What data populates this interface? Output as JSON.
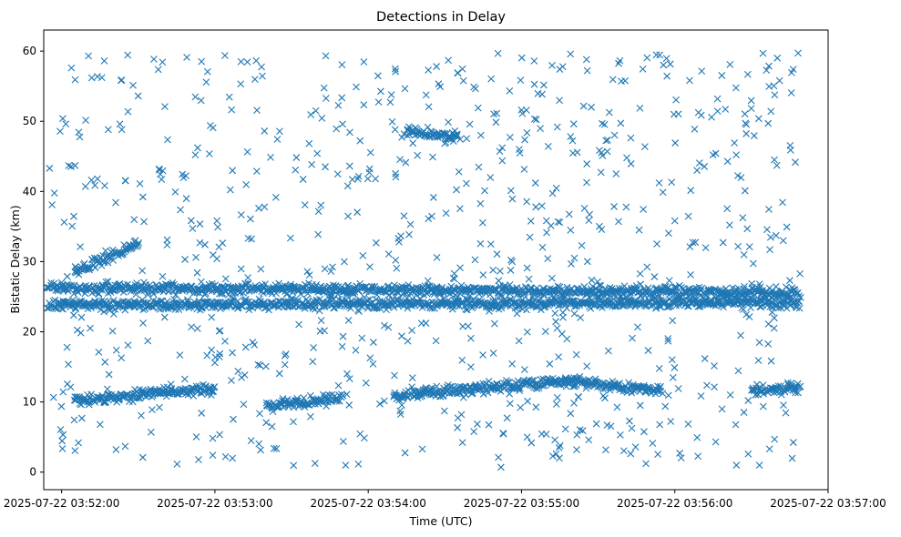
{
  "chart_data": {
    "type": "scatter",
    "title": "Detections in Delay",
    "xlabel": "Time (UTC)",
    "ylabel": "Bistatic Delay (km)",
    "marker": "x",
    "marker_color": "#1f77b4",
    "xlim": [
      "2025-07-22 03:51:53",
      "2025-07-22 03:57:00"
    ],
    "ylim": [
      -2.5,
      63
    ],
    "x_ticks": [
      "2025-07-22 03:52:00",
      "2025-07-22 03:53:00",
      "2025-07-22 03:54:00",
      "2025-07-22 03:55:00",
      "2025-07-22 03:56:00",
      "2025-07-22 03:57:00"
    ],
    "y_ticks": [
      0,
      10,
      20,
      30,
      40,
      50,
      60
    ],
    "grid": false,
    "tracks": [
      {
        "start": "2025-07-22 03:51:54",
        "end": "2025-07-22 03:56:49",
        "y_start": 26.3,
        "y_end": 25.6
      },
      {
        "start": "2025-07-22 03:51:54",
        "end": "2025-07-22 03:56:49",
        "y_start": 23.8,
        "y_end": 24.2
      },
      {
        "start": "2025-07-22 03:52:05",
        "end": "2025-07-22 03:52:30",
        "y_start": 28.5,
        "y_end": 32.5
      },
      {
        "start": "2025-07-22 03:52:05",
        "end": "2025-07-22 03:53:00",
        "y_start": 10.2,
        "y_end": 11.9
      },
      {
        "start": "2025-07-22 03:53:20",
        "end": "2025-07-22 03:53:50",
        "y_start": 9.5,
        "y_end": 10.5
      },
      {
        "start": "2025-07-22 03:54:10",
        "end": "2025-07-22 03:55:20",
        "y_start": 11.0,
        "y_end": 13.0
      },
      {
        "start": "2025-07-22 03:55:20",
        "end": "2025-07-22 03:55:55",
        "y_start": 13.0,
        "y_end": 11.5
      },
      {
        "start": "2025-07-22 03:54:15",
        "end": "2025-07-22 03:54:35",
        "y_start": 48.5,
        "y_end": 47.8
      },
      {
        "start": "2025-07-22 03:56:30",
        "end": "2025-07-22 03:56:49",
        "y_start": 11.8,
        "y_end": 12.0
      }
    ],
    "scatter_range": {
      "y_min": 0.5,
      "y_max": 59.8
    }
  }
}
